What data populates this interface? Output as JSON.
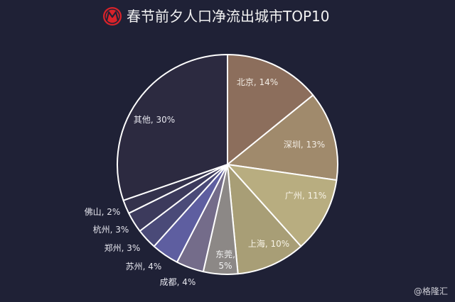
{
  "chart_data": {
    "type": "pie",
    "title": "春节前夕人口净流出城市TOP10",
    "slices": [
      {
        "name": "北京",
        "value": 14,
        "label": "北京, 14%",
        "color": "#8c6e5c",
        "label_color": "#f2ece4"
      },
      {
        "name": "深圳",
        "value": 13,
        "label": "深圳, 13%",
        "color": "#a08a6c",
        "label_color": "#f2ece4"
      },
      {
        "name": "广州",
        "value": 11,
        "label": "广州, 11%",
        "color": "#b8ad80",
        "label_color": "#f7f3e6"
      },
      {
        "name": "上海",
        "value": 10,
        "label": "上海, 10%",
        "color": "#a89e76",
        "label_color": "#f7f3e6"
      },
      {
        "name": "东莞",
        "value": 5,
        "label": [
          "东莞,",
          "5%"
        ],
        "color": "#8c8886",
        "label_color": "#f2f2f2"
      },
      {
        "name": "成都",
        "value": 4,
        "label": "成都, 4%",
        "color": "#746c8a",
        "label_color": "#e6e6ee"
      },
      {
        "name": "苏州",
        "value": 4,
        "label": "苏州, 4%",
        "color": "#5e5ea0",
        "label_color": "#e6e6ee"
      },
      {
        "name": "郑州",
        "value": 3,
        "label": "郑州, 3%",
        "color": "#4a4a78",
        "label_color": "#e6e6ee"
      },
      {
        "name": "杭州",
        "value": 3,
        "label": "杭州, 3%",
        "color": "#3c3a5c",
        "label_color": "#e6e6ee"
      },
      {
        "name": "佛山",
        "value": 2,
        "label": "佛山, 2%",
        "color": "#34324c",
        "label_color": "#e6e6ee"
      },
      {
        "name": "其他",
        "value": 30,
        "label": "其他, 30%",
        "color": "#2c2a40",
        "label_color": "#e6e6ee"
      }
    ],
    "start_angle_deg": 0,
    "direction": "clockwise",
    "slice_border_color": "#ffffff",
    "legend": "none"
  },
  "logo": {
    "icon": "brand-emblem-icon",
    "color": "#d8232a"
  },
  "watermark": "@格隆汇",
  "colors": {
    "background": "#1f2136",
    "title": "#f2f2f2"
  }
}
